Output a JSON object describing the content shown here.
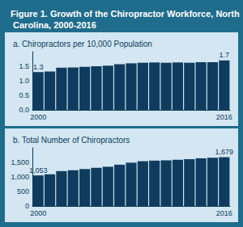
{
  "title": "Figure 1. Growth of the Chiropractor Workforce, North Carolina, 2000-2016",
  "chart_data": [
    {
      "type": "bar",
      "title": "a. Chiropractors per 10,000 Population",
      "categories": [
        "2000",
        null,
        null,
        null,
        null,
        null,
        null,
        null,
        null,
        null,
        null,
        null,
        null,
        null,
        null,
        null,
        "2016"
      ],
      "values": [
        1.3,
        1.32,
        1.45,
        1.46,
        1.48,
        1.5,
        1.52,
        1.57,
        1.6,
        1.62,
        1.63,
        1.62,
        1.63,
        1.62,
        1.64,
        1.64,
        1.7
      ],
      "value_labels": [
        "1.3",
        null,
        null,
        null,
        null,
        null,
        null,
        null,
        null,
        null,
        null,
        null,
        null,
        null,
        null,
        null,
        "1.7"
      ],
      "data_labels": true,
      "color": "#0f3c5e",
      "ylim": [
        0,
        2
      ],
      "yticks": [
        {
          "value": 0,
          "label": "0.0"
        },
        0.5,
        {
          "value": 1,
          "label": "1.0"
        },
        1.5
      ],
      "grid": false
    },
    {
      "type": "bar",
      "title": "b. Total Number of Chiropractors",
      "categories": [
        "2000",
        null,
        null,
        null,
        null,
        null,
        null,
        null,
        null,
        null,
        null,
        null,
        null,
        null,
        null,
        null,
        "2016"
      ],
      "values": [
        1053,
        1090,
        1200,
        1230,
        1270,
        1310,
        1350,
        1420,
        1490,
        1540,
        1560,
        1570,
        1590,
        1610,
        1640,
        1660,
        1679
      ],
      "value_labels": [
        "1,053",
        null,
        null,
        null,
        null,
        null,
        null,
        null,
        null,
        null,
        null,
        null,
        null,
        null,
        null,
        null,
        "1,679"
      ],
      "data_labels": true,
      "color": "#0f3c5e",
      "ylim": [
        0,
        2000
      ],
      "yticks": [
        0,
        500,
        {
          "value": 1000,
          "label": "1,000"
        },
        {
          "value": 1500,
          "label": "1,500"
        }
      ],
      "grid": false
    }
  ]
}
